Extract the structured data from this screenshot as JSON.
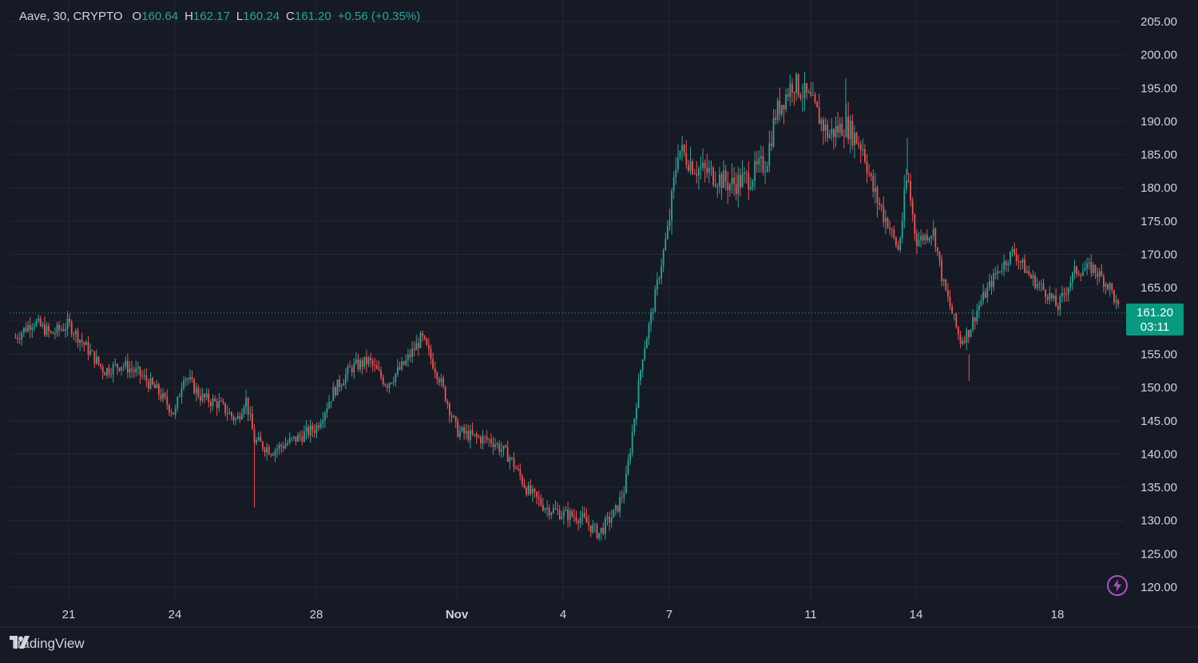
{
  "legend": {
    "symbol": "Aave, 30, CRYPTO",
    "open_key": "O",
    "open": "160.64",
    "high_key": "H",
    "high": "162.17",
    "low_key": "L",
    "low": "160.24",
    "close_key": "C",
    "close": "161.20",
    "change": "+0.56 (+0.35%)"
  },
  "price_tag": {
    "price": "161.20",
    "countdown": "03:11"
  },
  "brand": {
    "name": "TradingView"
  },
  "colors": {
    "background": "#161a25",
    "up": "#26a69a",
    "down": "#ef5350",
    "grid": "#232734",
    "text": "#d1d4dc",
    "tag": "#089981"
  },
  "chart_data": {
    "type": "candlestick",
    "title": "Aave, 30, CRYPTO",
    "ylim": [
      117,
      208
    ],
    "y_ticks": [
      "205.00",
      "200.00",
      "195.00",
      "190.00",
      "185.00",
      "180.00",
      "175.00",
      "170.00",
      "165.00",
      "160.00",
      "155.00",
      "150.00",
      "145.00",
      "140.00",
      "135.00",
      "130.00",
      "125.00",
      "120.00"
    ],
    "x_ticks": [
      "21",
      "24",
      "28",
      "Nov",
      "4",
      "7",
      "11",
      "14",
      "18"
    ],
    "last_price": 161.2,
    "grid": true,
    "close_path": [
      {
        "date": "Oct 19 12:00",
        "close": 157.5
      },
      {
        "date": "Oct 20 00:00",
        "close": 160.0
      },
      {
        "date": "Oct 20 12:00",
        "close": 158.0
      },
      {
        "date": "Oct 21 00:00",
        "close": 159.5
      },
      {
        "date": "Oct 21 12:00",
        "close": 156.0
      },
      {
        "date": "Oct 22 00:00",
        "close": 152.5
      },
      {
        "date": "Oct 22 12:00",
        "close": 153.5
      },
      {
        "date": "Oct 23 00:00",
        "close": 152.0
      },
      {
        "date": "Oct 23 12:00",
        "close": 149.5
      },
      {
        "date": "Oct 24 00:00",
        "close": 146.0
      },
      {
        "date": "Oct 24 06:00",
        "close": 152.0
      },
      {
        "date": "Oct 24 18:00",
        "close": 148.5
      },
      {
        "date": "Oct 25 06:00",
        "close": 147.5
      },
      {
        "date": "Oct 25 18:00",
        "close": 145.0
      },
      {
        "date": "Oct 26 00:00",
        "close": 148.5
      },
      {
        "date": "Oct 26 06:00",
        "close": 142.0
      },
      {
        "date": "Oct 26 18:00",
        "close": 140.5
      },
      {
        "date": "Oct 27 12:00",
        "close": 142.5
      },
      {
        "date": "Oct 28 00:00",
        "close": 144.0
      },
      {
        "date": "Oct 28 12:00",
        "close": 149.5
      },
      {
        "date": "Oct 29 00:00",
        "close": 153.0
      },
      {
        "date": "Oct 29 12:00",
        "close": 154.0
      },
      {
        "date": "Oct 30 00:00",
        "close": 150.5
      },
      {
        "date": "Oct 30 12:00",
        "close": 153.5
      },
      {
        "date": "Oct 31 00:00",
        "close": 157.5
      },
      {
        "date": "Oct 31 12:00",
        "close": 151.5
      },
      {
        "date": "Nov 1 00:00",
        "close": 143.5
      },
      {
        "date": "Nov 1 12:00",
        "close": 142.5
      },
      {
        "date": "Nov 2 00:00",
        "close": 142.0
      },
      {
        "date": "Nov 2 12:00",
        "close": 139.5
      },
      {
        "date": "Nov 3 00:00",
        "close": 134.5
      },
      {
        "date": "Nov 3 12:00",
        "close": 132.0
      },
      {
        "date": "Nov 4 00:00",
        "close": 131.0
      },
      {
        "date": "Nov 4 12:00",
        "close": 130.5
      },
      {
        "date": "Nov 5 00:00",
        "close": 128.0
      },
      {
        "date": "Nov 5 12:00",
        "close": 131.5
      },
      {
        "date": "Nov 5 18:00",
        "close": 135.0
      },
      {
        "date": "Nov 6 00:00",
        "close": 145.0
      },
      {
        "date": "Nov 6 06:00",
        "close": 155.0
      },
      {
        "date": "Nov 6 12:00",
        "close": 161.0
      },
      {
        "date": "Nov 6 18:00",
        "close": 168.0
      },
      {
        "date": "Nov 7 00:00",
        "close": 175.0
      },
      {
        "date": "Nov 7 06:00",
        "close": 186.0
      },
      {
        "date": "Nov 7 18:00",
        "close": 183.0
      },
      {
        "date": "Nov 8 06:00",
        "close": 182.0
      },
      {
        "date": "Nov 8 18:00",
        "close": 180.5
      },
      {
        "date": "Nov 9 06:00",
        "close": 181.5
      },
      {
        "date": "Nov 9 18:00",
        "close": 184.0
      },
      {
        "date": "Nov 10 00:00",
        "close": 191.0
      },
      {
        "date": "Nov 10 12:00",
        "close": 196.0
      },
      {
        "date": "Nov 11 00:00",
        "close": 193.0
      },
      {
        "date": "Nov 11 12:00",
        "close": 188.0
      },
      {
        "date": "Nov 12 00:00",
        "close": 189.5
      },
      {
        "date": "Nov 12 12:00",
        "close": 186.0
      },
      {
        "date": "Nov 12 18:00",
        "close": 180.0
      },
      {
        "date": "Nov 13 06:00",
        "close": 174.0
      },
      {
        "date": "Nov 13 12:00",
        "close": 170.5
      },
      {
        "date": "Nov 13 18:00",
        "close": 182.0
      },
      {
        "date": "Nov 14 00:00",
        "close": 172.0
      },
      {
        "date": "Nov 14 12:00",
        "close": 173.5
      },
      {
        "date": "Nov 14 18:00",
        "close": 166.0
      },
      {
        "date": "Nov 15 06:00",
        "close": 157.0
      },
      {
        "date": "Nov 15 12:00",
        "close": 158.5
      },
      {
        "date": "Nov 15 18:00",
        "close": 162.0
      },
      {
        "date": "Nov 16 06:00",
        "close": 167.0
      },
      {
        "date": "Nov 16 18:00",
        "close": 170.5
      },
      {
        "date": "Nov 17 06:00",
        "close": 166.5
      },
      {
        "date": "Nov 17 18:00",
        "close": 164.0
      },
      {
        "date": "Nov 18 00:00",
        "close": 162.0
      },
      {
        "date": "Nov 18 12:00",
        "close": 167.5
      },
      {
        "date": "Nov 19 00:00",
        "close": 168.0
      },
      {
        "date": "Nov 19 12:00",
        "close": 165.0
      },
      {
        "date": "Nov 19 18:00",
        "close": 161.2
      }
    ]
  }
}
